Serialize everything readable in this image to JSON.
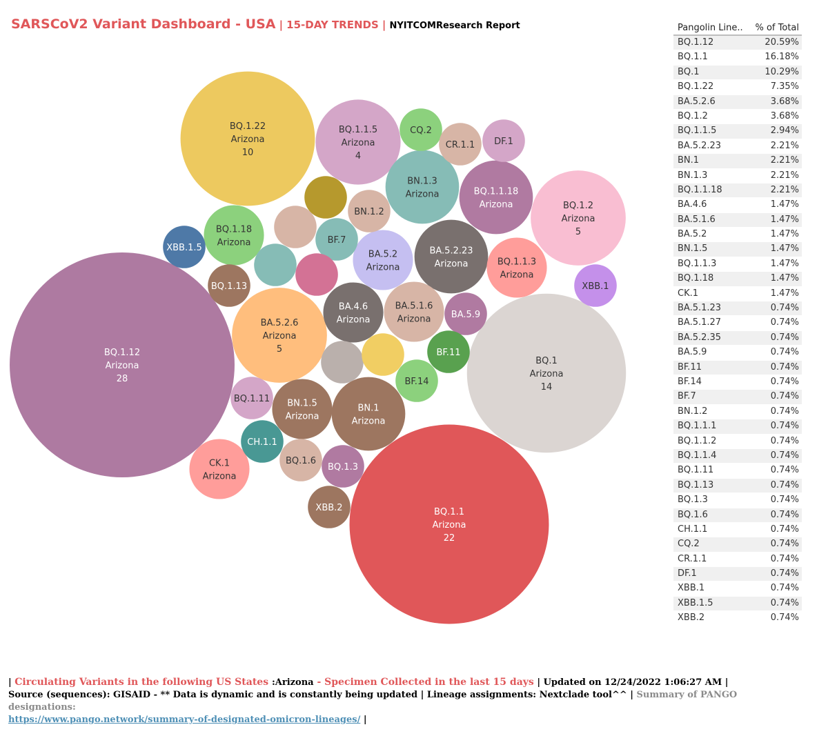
{
  "header": {
    "title": "SARSCoV2 Variant Dashboard - USA",
    "separator": "|",
    "subtitle": "15-DAY TRENDS",
    "report": "NYITCOMResearch Report"
  },
  "table": {
    "col1": "Pangolin Line..",
    "col2": "% of Total",
    "rows": [
      {
        "lineage": "BQ.1.12",
        "pct": "20.59%"
      },
      {
        "lineage": "BQ.1.1",
        "pct": "16.18%"
      },
      {
        "lineage": "BQ.1",
        "pct": "10.29%"
      },
      {
        "lineage": "BQ.1.22",
        "pct": "7.35%"
      },
      {
        "lineage": "BA.5.2.6",
        "pct": "3.68%"
      },
      {
        "lineage": "BQ.1.2",
        "pct": "3.68%"
      },
      {
        "lineage": "BQ.1.1.5",
        "pct": "2.94%"
      },
      {
        "lineage": "BA.5.2.23",
        "pct": "2.21%"
      },
      {
        "lineage": "BN.1",
        "pct": "2.21%"
      },
      {
        "lineage": "BN.1.3",
        "pct": "2.21%"
      },
      {
        "lineage": "BQ.1.1.18",
        "pct": "2.21%"
      },
      {
        "lineage": "BA.4.6",
        "pct": "1.47%"
      },
      {
        "lineage": "BA.5.1.6",
        "pct": "1.47%"
      },
      {
        "lineage": "BA.5.2",
        "pct": "1.47%"
      },
      {
        "lineage": "BN.1.5",
        "pct": "1.47%"
      },
      {
        "lineage": "BQ.1.1.3",
        "pct": "1.47%"
      },
      {
        "lineage": "BQ.1.18",
        "pct": "1.47%"
      },
      {
        "lineage": "CK.1",
        "pct": "1.47%"
      },
      {
        "lineage": "BA.5.1.23",
        "pct": "0.74%"
      },
      {
        "lineage": "BA.5.1.27",
        "pct": "0.74%"
      },
      {
        "lineage": "BA.5.2.35",
        "pct": "0.74%"
      },
      {
        "lineage": "BA.5.9",
        "pct": "0.74%"
      },
      {
        "lineage": "BF.11",
        "pct": "0.74%"
      },
      {
        "lineage": "BF.14",
        "pct": "0.74%"
      },
      {
        "lineage": "BF.7",
        "pct": "0.74%"
      },
      {
        "lineage": "BN.1.2",
        "pct": "0.74%"
      },
      {
        "lineage": "BQ.1.1.1",
        "pct": "0.74%"
      },
      {
        "lineage": "BQ.1.1.2",
        "pct": "0.74%"
      },
      {
        "lineage": "BQ.1.1.4",
        "pct": "0.74%"
      },
      {
        "lineage": "BQ.1.11",
        "pct": "0.74%"
      },
      {
        "lineage": "BQ.1.13",
        "pct": "0.74%"
      },
      {
        "lineage": "BQ.1.3",
        "pct": "0.74%"
      },
      {
        "lineage": "BQ.1.6",
        "pct": "0.74%"
      },
      {
        "lineage": "CH.1.1",
        "pct": "0.74%"
      },
      {
        "lineage": "CQ.2",
        "pct": "0.74%"
      },
      {
        "lineage": "CR.1.1",
        "pct": "0.74%"
      },
      {
        "lineage": "DF.1",
        "pct": "0.74%"
      },
      {
        "lineage": "XBB.1",
        "pct": "0.74%"
      },
      {
        "lineage": "XBB.1.5",
        "pct": "0.74%"
      },
      {
        "lineage": "XBB.2",
        "pct": "0.74%"
      }
    ]
  },
  "chart_data": {
    "type": "bubble",
    "state": "Arizona",
    "series": [
      {
        "lineage": "BQ.1.12",
        "count": 28,
        "color": "#ae7aa1",
        "label": [
          "BQ.1.12",
          "Arizona",
          "28"
        ]
      },
      {
        "lineage": "BQ.1.1",
        "count": 22,
        "color": "#e05759",
        "label": [
          "BQ.1.1",
          "Arizona",
          "22"
        ]
      },
      {
        "lineage": "BQ.1",
        "count": 14,
        "color": "#dbd5d2",
        "label": [
          "BQ.1",
          "Arizona",
          "14"
        ]
      },
      {
        "lineage": "BQ.1.22",
        "count": 10,
        "color": "#edc95f",
        "label": [
          "BQ.1.22",
          "Arizona",
          "10"
        ]
      },
      {
        "lineage": "BA.5.2.6",
        "count": 5,
        "color": "#ffbe7d",
        "label": [
          "BA.5.2.6",
          "Arizona",
          "5"
        ]
      },
      {
        "lineage": "BQ.1.2",
        "count": 5,
        "color": "#f9bed2",
        "label": [
          "BQ.1.2",
          "Arizona",
          "5"
        ]
      },
      {
        "lineage": "BQ.1.1.5",
        "count": 4,
        "color": "#d4a6c8",
        "label": [
          "BQ.1.1.5",
          "Arizona",
          "4"
        ]
      },
      {
        "lineage": "BA.5.2.23",
        "count": 3,
        "color": "#79706e",
        "label": [
          "BA.5.2.23",
          "Arizona"
        ]
      },
      {
        "lineage": "BN.1",
        "count": 3,
        "color": "#9d7660",
        "label": [
          "BN.1",
          "Arizona"
        ]
      },
      {
        "lineage": "BN.1.3",
        "count": 3,
        "color": "#86bcb6",
        "label": [
          "BN.1.3",
          "Arizona"
        ]
      },
      {
        "lineage": "BQ.1.1.18",
        "count": 3,
        "color": "#b07aa1",
        "label": [
          "BQ.1.1.18",
          "Arizona"
        ]
      },
      {
        "lineage": "BA.4.6",
        "count": 2,
        "color": "#79706e",
        "label": [
          "BA.4.6",
          "Arizona"
        ]
      },
      {
        "lineage": "BA.5.1.6",
        "count": 2,
        "color": "#d7b5a6",
        "label": [
          "BA.5.1.6",
          "Arizona"
        ]
      },
      {
        "lineage": "BA.5.2",
        "count": 2,
        "color": "#c5bff1",
        "label": [
          "BA.5.2",
          "Arizona"
        ]
      },
      {
        "lineage": "BN.1.5",
        "count": 2,
        "color": "#9d7660",
        "label": [
          "BN.1.5",
          "Arizona"
        ]
      },
      {
        "lineage": "BQ.1.1.3",
        "count": 2,
        "color": "#ff9d9a",
        "label": [
          "BQ.1.1.3",
          "Arizona"
        ]
      },
      {
        "lineage": "BQ.1.18",
        "count": 2,
        "color": "#8cd17d",
        "label": [
          "BQ.1.18",
          "Arizona"
        ]
      },
      {
        "lineage": "CK.1",
        "count": 2,
        "color": "#ff9d9a",
        "label": [
          "CK.1",
          "Arizona"
        ]
      },
      {
        "lineage": "BA.5.1.23",
        "count": 1,
        "color": "#b6992d",
        "label": []
      },
      {
        "lineage": "BA.5.1.27",
        "count": 1,
        "color": "#d7b5a6",
        "label": []
      },
      {
        "lineage": "BA.5.2.35",
        "count": 1,
        "color": "#86bcb6",
        "label": []
      },
      {
        "lineage": "BA.5.9",
        "count": 1,
        "color": "#b07aa1",
        "label": [
          "BA.5.9"
        ]
      },
      {
        "lineage": "BF.11",
        "count": 1,
        "color": "#59a14f",
        "label": [
          "BF.11"
        ]
      },
      {
        "lineage": "BF.14",
        "count": 1,
        "color": "#8cd17d",
        "label": [
          "BF.14"
        ]
      },
      {
        "lineage": "BF.7",
        "count": 1,
        "color": "#86bcb6",
        "label": [
          "BF.7"
        ]
      },
      {
        "lineage": "BN.1.2",
        "count": 1,
        "color": "#d7b5a6",
        "label": [
          "BN.1.2"
        ]
      },
      {
        "lineage": "BQ.1.1.1",
        "count": 1,
        "color": "#d37295",
        "label": []
      },
      {
        "lineage": "BQ.1.1.2",
        "count": 1,
        "color": "#bab0ac",
        "label": []
      },
      {
        "lineage": "BQ.1.1.4",
        "count": 1,
        "color": "#f1ce63",
        "label": []
      },
      {
        "lineage": "BQ.1.11",
        "count": 1,
        "color": "#d4a6c8",
        "label": [
          "BQ.1.11"
        ]
      },
      {
        "lineage": "BQ.1.13",
        "count": 1,
        "color": "#9d7660",
        "label": [
          "BQ.1.13"
        ]
      },
      {
        "lineage": "BQ.1.3",
        "count": 1,
        "color": "#b07aa1",
        "label": [
          "BQ.1.3"
        ]
      },
      {
        "lineage": "BQ.1.6",
        "count": 1,
        "color": "#d7b5a6",
        "label": [
          "BQ.1.6"
        ]
      },
      {
        "lineage": "CH.1.1",
        "count": 1,
        "color": "#499894",
        "label": [
          "CH.1.1"
        ]
      },
      {
        "lineage": "CQ.2",
        "count": 1,
        "color": "#8cd17d",
        "label": [
          "CQ.2"
        ]
      },
      {
        "lineage": "CR.1.1",
        "count": 1,
        "color": "#d7b5a6",
        "label": [
          "CR.1.1"
        ]
      },
      {
        "lineage": "DF.1",
        "count": 1,
        "color": "#d4a6c8",
        "label": [
          "DF.1"
        ]
      },
      {
        "lineage": "XBB.1",
        "count": 1,
        "color": "#c490ea",
        "label": [
          "XBB.1"
        ]
      },
      {
        "lineage": "XBB.1.5",
        "count": 1,
        "color": "#4e79a7",
        "label": [
          "XBB.1.5"
        ]
      },
      {
        "lineage": "XBB.2",
        "count": 1,
        "color": "#9d7660",
        "label": [
          "XBB.2"
        ]
      }
    ]
  },
  "footer": {
    "line1_open": "| ",
    "line1_red": "Circulating Variants in the following US States ",
    "line1_state": ":Arizona",
    "line1_red2": " - Specimen Collected in the last 15 days",
    "line1_updated": " | Updated on 12/24/2022 1:06:27 AM |",
    "line2_text": "Source (sequences): GISAID - ** Data is dynamic and is constantly being updated | Lineage assignments: Nextclade tool^^ |",
    "line2_grey": " Summary of PANGO designations:",
    "link": "https://www.pango.network/summary-of-designated-omicron-lineages/",
    "line3_tail": " |"
  }
}
